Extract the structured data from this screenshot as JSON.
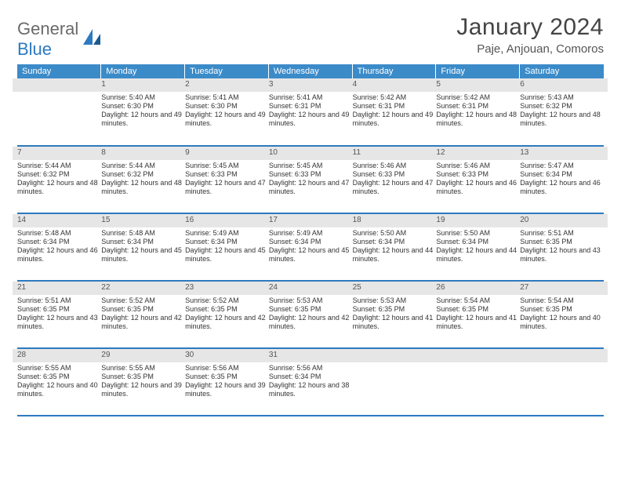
{
  "brand": {
    "part1": "General",
    "part2": "Blue"
  },
  "title": "January 2024",
  "location": "Paje, Anjouan, Comoros",
  "colors": {
    "header_bg": "#3b8bc9",
    "row_border": "#2d7ac0",
    "daynum_bg": "#e6e6e6"
  },
  "weekdays": [
    "Sunday",
    "Monday",
    "Tuesday",
    "Wednesday",
    "Thursday",
    "Friday",
    "Saturday"
  ],
  "weeks": [
    [
      {
        "n": "",
        "body": ""
      },
      {
        "n": "1",
        "body": "Sunrise: 5:40 AM\nSunset: 6:30 PM\nDaylight: 12 hours and 49 minutes."
      },
      {
        "n": "2",
        "body": "Sunrise: 5:41 AM\nSunset: 6:30 PM\nDaylight: 12 hours and 49 minutes."
      },
      {
        "n": "3",
        "body": "Sunrise: 5:41 AM\nSunset: 6:31 PM\nDaylight: 12 hours and 49 minutes."
      },
      {
        "n": "4",
        "body": "Sunrise: 5:42 AM\nSunset: 6:31 PM\nDaylight: 12 hours and 49 minutes."
      },
      {
        "n": "5",
        "body": "Sunrise: 5:42 AM\nSunset: 6:31 PM\nDaylight: 12 hours and 48 minutes."
      },
      {
        "n": "6",
        "body": "Sunrise: 5:43 AM\nSunset: 6:32 PM\nDaylight: 12 hours and 48 minutes."
      }
    ],
    [
      {
        "n": "7",
        "body": "Sunrise: 5:44 AM\nSunset: 6:32 PM\nDaylight: 12 hours and 48 minutes."
      },
      {
        "n": "8",
        "body": "Sunrise: 5:44 AM\nSunset: 6:32 PM\nDaylight: 12 hours and 48 minutes."
      },
      {
        "n": "9",
        "body": "Sunrise: 5:45 AM\nSunset: 6:33 PM\nDaylight: 12 hours and 47 minutes."
      },
      {
        "n": "10",
        "body": "Sunrise: 5:45 AM\nSunset: 6:33 PM\nDaylight: 12 hours and 47 minutes."
      },
      {
        "n": "11",
        "body": "Sunrise: 5:46 AM\nSunset: 6:33 PM\nDaylight: 12 hours and 47 minutes."
      },
      {
        "n": "12",
        "body": "Sunrise: 5:46 AM\nSunset: 6:33 PM\nDaylight: 12 hours and 46 minutes."
      },
      {
        "n": "13",
        "body": "Sunrise: 5:47 AM\nSunset: 6:34 PM\nDaylight: 12 hours and 46 minutes."
      }
    ],
    [
      {
        "n": "14",
        "body": "Sunrise: 5:48 AM\nSunset: 6:34 PM\nDaylight: 12 hours and 46 minutes."
      },
      {
        "n": "15",
        "body": "Sunrise: 5:48 AM\nSunset: 6:34 PM\nDaylight: 12 hours and 45 minutes."
      },
      {
        "n": "16",
        "body": "Sunrise: 5:49 AM\nSunset: 6:34 PM\nDaylight: 12 hours and 45 minutes."
      },
      {
        "n": "17",
        "body": "Sunrise: 5:49 AM\nSunset: 6:34 PM\nDaylight: 12 hours and 45 minutes."
      },
      {
        "n": "18",
        "body": "Sunrise: 5:50 AM\nSunset: 6:34 PM\nDaylight: 12 hours and 44 minutes."
      },
      {
        "n": "19",
        "body": "Sunrise: 5:50 AM\nSunset: 6:34 PM\nDaylight: 12 hours and 44 minutes."
      },
      {
        "n": "20",
        "body": "Sunrise: 5:51 AM\nSunset: 6:35 PM\nDaylight: 12 hours and 43 minutes."
      }
    ],
    [
      {
        "n": "21",
        "body": "Sunrise: 5:51 AM\nSunset: 6:35 PM\nDaylight: 12 hours and 43 minutes."
      },
      {
        "n": "22",
        "body": "Sunrise: 5:52 AM\nSunset: 6:35 PM\nDaylight: 12 hours and 42 minutes."
      },
      {
        "n": "23",
        "body": "Sunrise: 5:52 AM\nSunset: 6:35 PM\nDaylight: 12 hours and 42 minutes."
      },
      {
        "n": "24",
        "body": "Sunrise: 5:53 AM\nSunset: 6:35 PM\nDaylight: 12 hours and 42 minutes."
      },
      {
        "n": "25",
        "body": "Sunrise: 5:53 AM\nSunset: 6:35 PM\nDaylight: 12 hours and 41 minutes."
      },
      {
        "n": "26",
        "body": "Sunrise: 5:54 AM\nSunset: 6:35 PM\nDaylight: 12 hours and 41 minutes."
      },
      {
        "n": "27",
        "body": "Sunrise: 5:54 AM\nSunset: 6:35 PM\nDaylight: 12 hours and 40 minutes."
      }
    ],
    [
      {
        "n": "28",
        "body": "Sunrise: 5:55 AM\nSunset: 6:35 PM\nDaylight: 12 hours and 40 minutes."
      },
      {
        "n": "29",
        "body": "Sunrise: 5:55 AM\nSunset: 6:35 PM\nDaylight: 12 hours and 39 minutes."
      },
      {
        "n": "30",
        "body": "Sunrise: 5:56 AM\nSunset: 6:35 PM\nDaylight: 12 hours and 39 minutes."
      },
      {
        "n": "31",
        "body": "Sunrise: 5:56 AM\nSunset: 6:34 PM\nDaylight: 12 hours and 38 minutes."
      },
      {
        "n": "",
        "body": ""
      },
      {
        "n": "",
        "body": ""
      },
      {
        "n": "",
        "body": ""
      }
    ]
  ]
}
